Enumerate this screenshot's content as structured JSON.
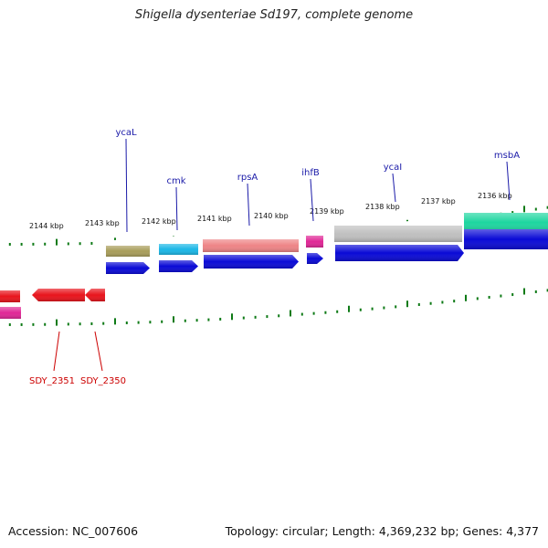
{
  "title": "Shigella dysenteriae Sd197, complete genome",
  "footer": {
    "accession": "Accession: NC_007606",
    "topology": "Topology: circular; Length: 4,369,232 bp; Genes: 4,377"
  },
  "scale_labels": [
    "2144 kbp",
    "2143 kbp",
    "2142 kbp",
    "2141 kbp",
    "2140 kbp",
    "2139 kbp",
    "2138 kbp",
    "2137 kbp",
    "2136 kbp"
  ],
  "genes_forward": [
    {
      "name": "ycaL",
      "color": "#a89d5a"
    },
    {
      "name": "cmk",
      "color": "#1bb7e6"
    },
    {
      "name": "rpsA",
      "color": "#ee8486"
    },
    {
      "name": "ihfB",
      "color": "#e02796"
    },
    {
      "name": "ycaI",
      "color": "#c0c0c0"
    },
    {
      "name": "msbA",
      "color": "#1dd6a0"
    }
  ],
  "genes_reverse": [
    {
      "name": "SDY_2351",
      "color": "#e8141c"
    },
    {
      "name": "SDY_2350",
      "color": "#e8141c"
    }
  ],
  "colors": {
    "cds": "#0a0ad6",
    "tick": "#0e7a16",
    "backbone": "#888888",
    "forward_label": "#1a1aa8",
    "reverse_label": "#cc0000"
  }
}
